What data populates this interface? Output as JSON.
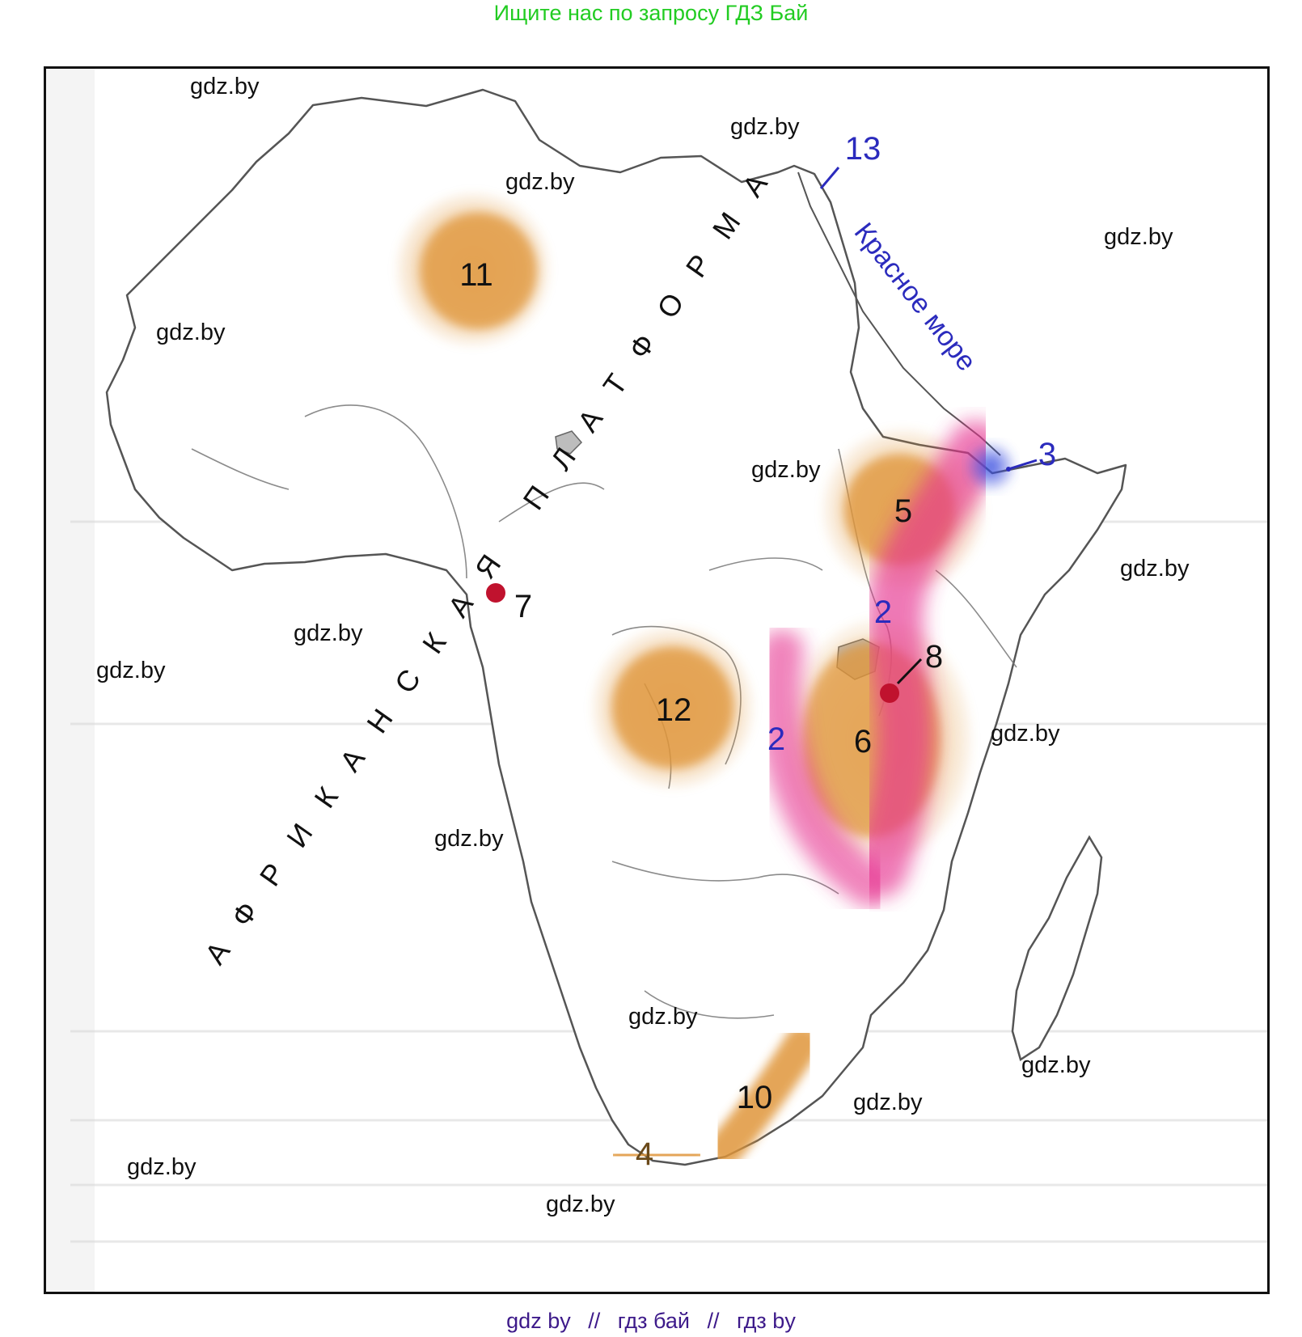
{
  "header": {
    "banner_text": "Ищите нас по запросу ГДЗ Бай",
    "banner_color": "#22cc22"
  },
  "footer": {
    "links": [
      "gdz by",
      "гдз бай",
      "гдз by"
    ],
    "separator": "//",
    "link_color": "#3d1a8a"
  },
  "map": {
    "platform_label": "АФРИКАНСКАЯ ПЛАТФОРМА",
    "sea_label": "Красное море",
    "markers": [
      {
        "id": "11",
        "label": "11",
        "kind": "orange-blob"
      },
      {
        "id": "12",
        "label": "12",
        "kind": "orange-blob"
      },
      {
        "id": "5",
        "label": "5",
        "kind": "orange-blob"
      },
      {
        "id": "6",
        "label": "6",
        "kind": "orange-blob"
      },
      {
        "id": "10",
        "label": "10",
        "kind": "orange-strip"
      },
      {
        "id": "4",
        "label": "4",
        "kind": "orange-strip"
      },
      {
        "id": "7",
        "label": "7",
        "kind": "red-dot"
      },
      {
        "id": "8",
        "label": "8",
        "kind": "red-dot"
      },
      {
        "id": "3",
        "label": "3",
        "kind": "blue-blob"
      },
      {
        "id": "13",
        "label": "13",
        "kind": "blue-pointer"
      },
      {
        "id": "2a",
        "label": "2",
        "kind": "rift-label"
      },
      {
        "id": "2b",
        "label": "2",
        "kind": "rift-label"
      }
    ],
    "colors": {
      "orange": "#e0963a",
      "magenta": "#e6338f",
      "red_dot": "#c0122e",
      "blue": "#2b2bbd",
      "coast": "#555555"
    },
    "watermark": "gdz.by"
  }
}
